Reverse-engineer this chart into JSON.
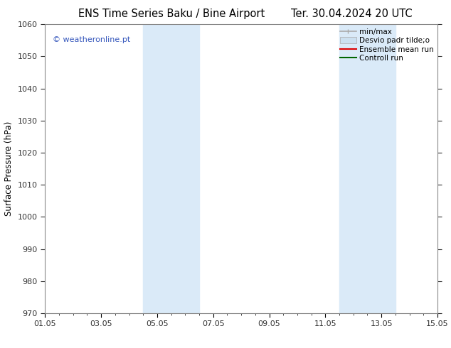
{
  "title_left": "ENS Time Series Baku / Bine Airport",
  "title_right": "Ter. 30.04.2024 20 UTC",
  "ylabel": "Surface Pressure (hPa)",
  "ylim": [
    970,
    1060
  ],
  "yticks": [
    970,
    980,
    990,
    1000,
    1010,
    1020,
    1030,
    1040,
    1050,
    1060
  ],
  "xlim_start": 0,
  "xlim_end": 14,
  "xtick_labels": [
    "01.05",
    "03.05",
    "05.05",
    "07.05",
    "09.05",
    "11.05",
    "13.05",
    "15.05"
  ],
  "xtick_positions": [
    0,
    2,
    4,
    6,
    8,
    10,
    12,
    14
  ],
  "shaded_bands": [
    {
      "x_start": 3.5,
      "x_end": 5.5
    },
    {
      "x_start": 10.5,
      "x_end": 12.5
    }
  ],
  "shaded_color": "#daeaf8",
  "watermark_text": "© weatheronline.pt",
  "watermark_color": "#3355bb",
  "background_color": "#ffffff",
  "spine_color": "#888888",
  "tick_color": "#333333",
  "title_fontsize": 10.5,
  "label_fontsize": 8.5,
  "tick_fontsize": 8,
  "legend_fontsize": 7.5
}
